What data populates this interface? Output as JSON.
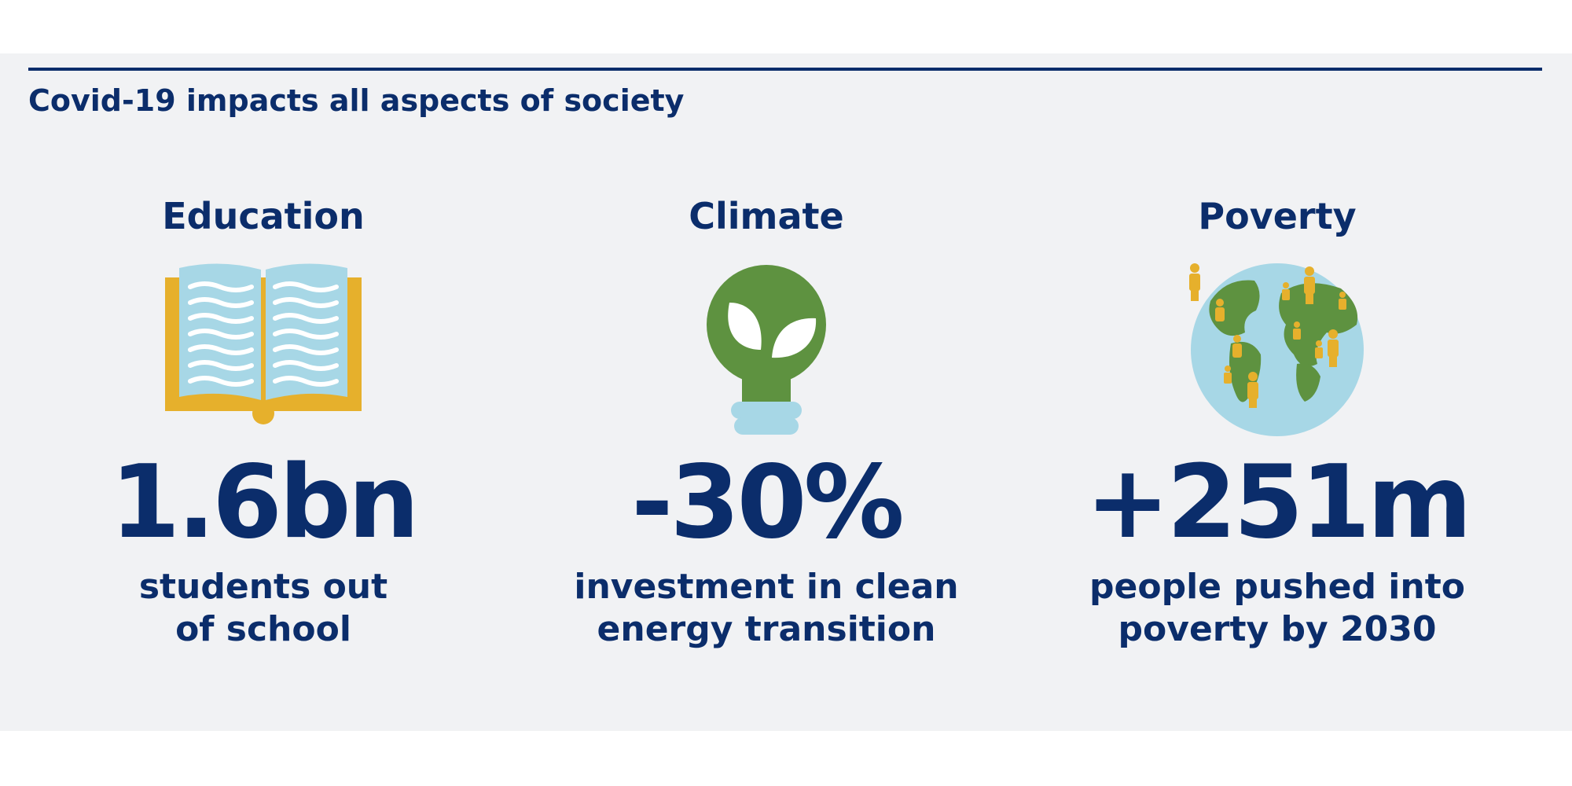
{
  "headline": "Covid-19 impacts all aspects of society",
  "colors": {
    "navy": "#0b2d6b",
    "panel_bg": "#f1f2f4",
    "gold": "#e6b02c",
    "light_blue": "#a7d7e6",
    "green": "#5e9240"
  },
  "columns": [
    {
      "title": "Education",
      "icon": "open-book-icon",
      "stat": "1.6bn",
      "desc_line1": "students out",
      "desc_line2": "of school"
    },
    {
      "title": "Climate",
      "icon": "leaf-lightbulb-icon",
      "stat": "-30%",
      "desc_line1": "investment in clean",
      "desc_line2": "energy transition"
    },
    {
      "title": "Poverty",
      "icon": "globe-people-icon",
      "stat": "+251m",
      "desc_line1": "people pushed into",
      "desc_line2": "poverty by 2030"
    }
  ]
}
